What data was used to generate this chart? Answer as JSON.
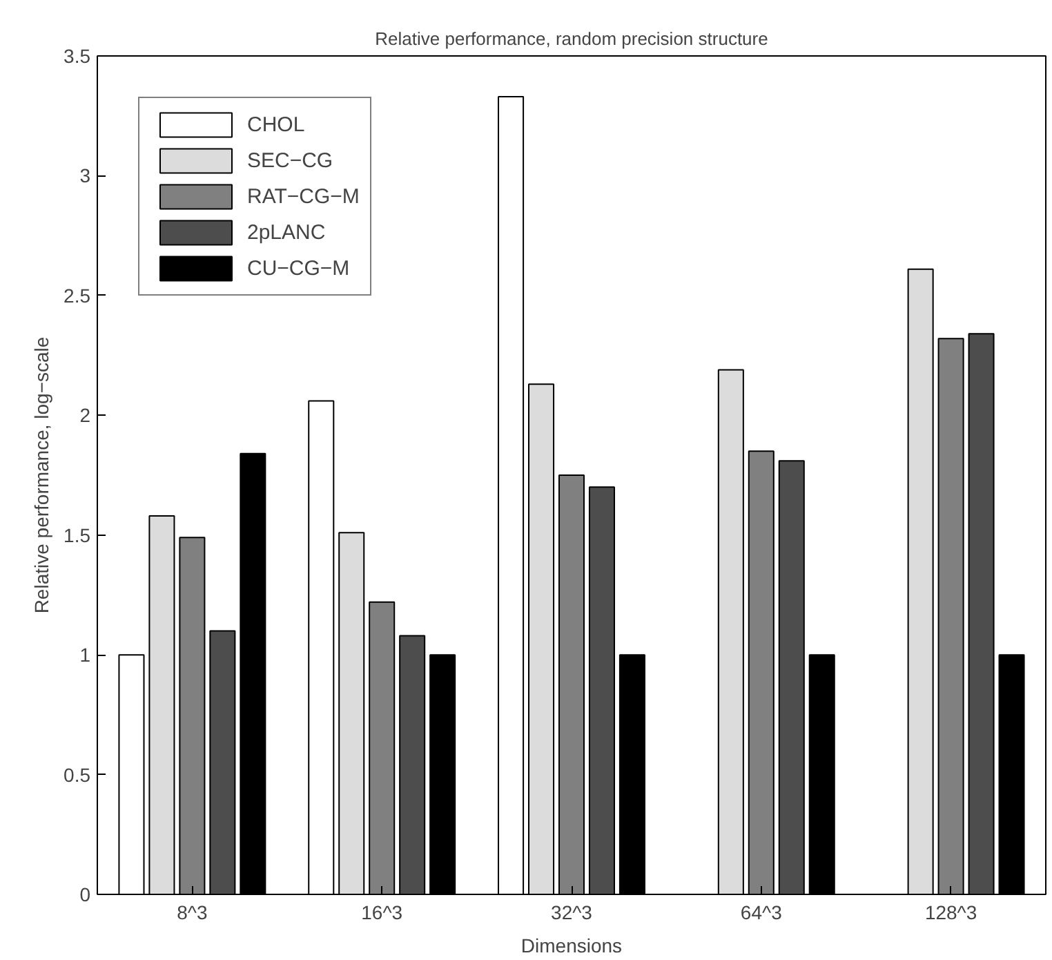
{
  "chart_data": {
    "type": "bar",
    "title": "Relative performance, random precision structure",
    "xlabel": "Dimensions",
    "ylabel": "Relative performance, log−scale",
    "categories": [
      "8^3",
      "16^3",
      "32^3",
      "64^3",
      "128^3"
    ],
    "series": [
      {
        "name": "CHOL",
        "color": "#ffffff",
        "values": [
          1.0,
          2.06,
          3.33,
          null,
          null
        ]
      },
      {
        "name": "SEC−CG",
        "color": "#dcdcdc",
        "values": [
          1.58,
          1.51,
          2.13,
          2.19,
          2.61
        ]
      },
      {
        "name": "RAT−CG−M",
        "color": "#808080",
        "values": [
          1.49,
          1.22,
          1.75,
          1.85,
          2.32
        ]
      },
      {
        "name": "2pLANC",
        "color": "#4d4d4d",
        "values": [
          1.1,
          1.08,
          1.7,
          1.81,
          2.34
        ]
      },
      {
        "name": "CU−CG−M",
        "color": "#000000",
        "values": [
          1.84,
          1.0,
          1.0,
          1.0,
          1.0
        ]
      }
    ],
    "ylim": [
      0,
      3.5
    ],
    "yticks": [
      0,
      0.5,
      1,
      1.5,
      2,
      2.5,
      3,
      3.5
    ],
    "grid": false,
    "legend": "top left"
  }
}
